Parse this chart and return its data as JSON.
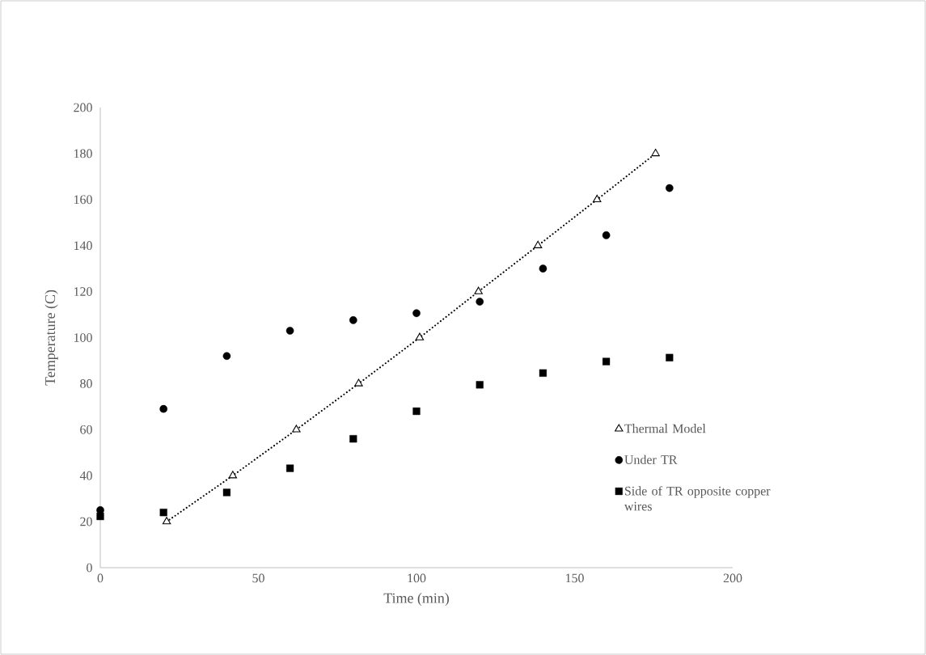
{
  "chart_data": {
    "type": "scatter",
    "xlabel": "Time (min)",
    "ylabel": "Temperature (C)",
    "xlim": [
      0,
      200
    ],
    "ylim": [
      0,
      200
    ],
    "xticks": [
      0,
      50,
      100,
      150,
      200
    ],
    "yticks": [
      0,
      20,
      40,
      60,
      80,
      100,
      120,
      140,
      160,
      180,
      200
    ],
    "grid": false,
    "legend": "right",
    "series": [
      {
        "name": "Thermal Model",
        "type": "line",
        "line_style": "dotted",
        "marker": "triangle",
        "color": "#000000",
        "x": [
          21,
          41.9,
          62,
          81.7,
          101,
          119.6,
          138.4,
          157.1,
          175.6
        ],
        "values": [
          20,
          40,
          60,
          80,
          100,
          120,
          140,
          160,
          180
        ]
      },
      {
        "name": "Under TR",
        "marker": "circle",
        "color": "#000000",
        "x": [
          0,
          20,
          40,
          60,
          80,
          100,
          120,
          140,
          160,
          180
        ],
        "values": [
          25,
          69,
          92,
          103,
          107.6,
          110.6,
          115.6,
          130,
          144.5,
          165
        ]
      },
      {
        "name": "Side of TR opposite copper wires",
        "marker": "square",
        "color": "#000000",
        "x": [
          0,
          20,
          40,
          60,
          80,
          100,
          120,
          140,
          160,
          180
        ],
        "values": [
          22.3,
          24,
          32.7,
          43.2,
          56,
          68,
          79.5,
          84.6,
          89.6,
          91.3
        ]
      }
    ]
  }
}
